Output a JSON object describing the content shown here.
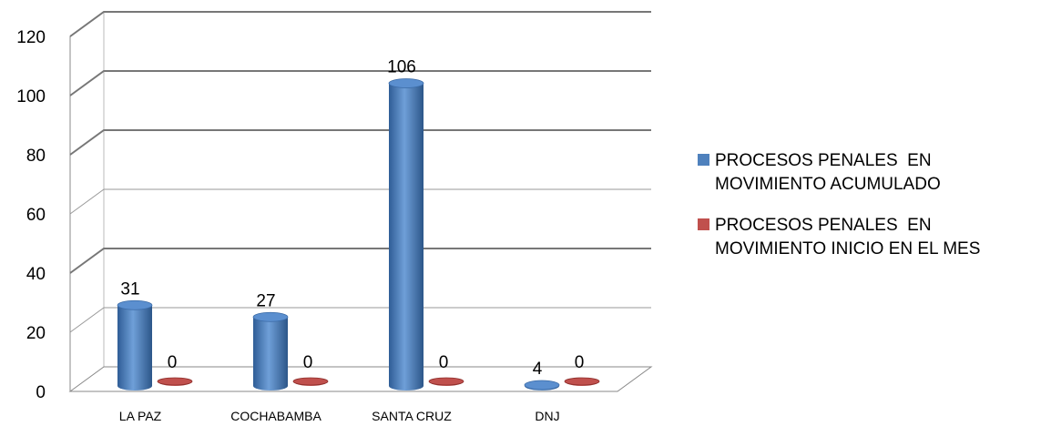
{
  "chart_data": {
    "type": "bar",
    "categories": [
      "LA PAZ",
      "COCHABAMBA",
      "SANTA CRUZ",
      "DNJ"
    ],
    "series": [
      {
        "name": "PROCESOS PENALES  EN\nMOVIMIENTO ACUMULADO",
        "values": [
          31,
          27,
          106,
          4
        ],
        "color": "#4f81bd"
      },
      {
        "name": "PROCESOS PENALES  EN\nMOVIMIENTO INICIO EN EL MES",
        "values": [
          0,
          0,
          0,
          0
        ],
        "color": "#c0504d"
      }
    ],
    "yticks": [
      "0",
      "20",
      "40",
      "60",
      "80",
      "100",
      "120"
    ],
    "ylim": [
      0,
      120
    ],
    "grid": true,
    "style": "3d-cylinder",
    "legend_position": "right"
  }
}
